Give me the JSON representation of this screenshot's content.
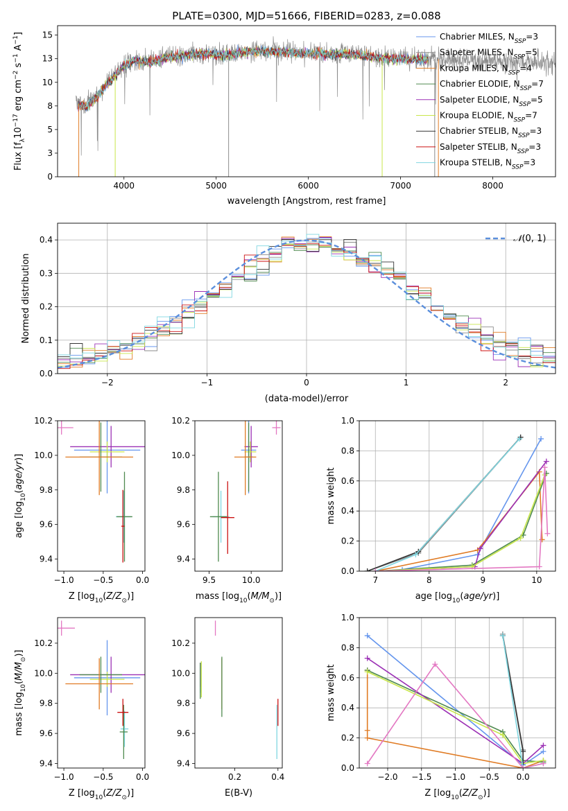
{
  "figure_title": "PLATE=0300, MJD=51666, FIBERID=0283, z=0.088",
  "models": [
    {
      "name": "Chabrier MILES",
      "nssp": "3",
      "color": "#6495ed"
    },
    {
      "name": "Salpeter MILES",
      "nssp": "5",
      "color": "#8b8b8b"
    },
    {
      "name": "Kroupa MILES",
      "nssp": "4",
      "color": "#e07b24"
    },
    {
      "name": "Chabrier ELODIE",
      "nssp": "7",
      "color": "#4f8a4f"
    },
    {
      "name": "Salpeter ELODIE",
      "nssp": "5",
      "color": "#9b30b5"
    },
    {
      "name": "Kroupa ELODIE",
      "nssp": "7",
      "color": "#c8e64a"
    },
    {
      "name": "Chabrier STELIB",
      "nssp": "3",
      "color": "#333333"
    },
    {
      "name": "Salpeter STELIB",
      "nssp": "3",
      "color": "#cc1111"
    },
    {
      "name": "Kroupa STELIB",
      "nssp": "3",
      "color": "#7fd6e0"
    }
  ],
  "chart_data": [
    {
      "id": "spectrum",
      "type": "line",
      "xlabel": "wavelength [Angstrom, rest frame]",
      "ylabel": "Flux [f_λ 10^-17 erg cm^-2 s^-1 A^-1]",
      "xlim": [
        3280,
        8680
      ],
      "ylim": [
        0,
        16
      ],
      "xticks": [
        4000,
        5000,
        6000,
        7000,
        8000
      ],
      "yticks": [
        0.0,
        2.5,
        5.0,
        7.5,
        10.0,
        12.5,
        15.0
      ],
      "grid": false,
      "legend": "right",
      "data_range": [
        3480,
        8680
      ],
      "data_spectrum": [
        [
          3480,
          7.8
        ],
        [
          3600,
          7.6
        ],
        [
          3700,
          8.6
        ],
        [
          3800,
          9.8
        ],
        [
          3900,
          10.8
        ],
        [
          4000,
          11.8
        ],
        [
          4100,
          12.4
        ],
        [
          4300,
          12.2
        ],
        [
          4500,
          12.8
        ],
        [
          4700,
          13.0
        ],
        [
          4900,
          13.1
        ],
        [
          5100,
          12.9
        ],
        [
          5300,
          13.3
        ],
        [
          5500,
          13.4
        ],
        [
          5700,
          13.3
        ],
        [
          5900,
          13.2
        ],
        [
          6100,
          13.1
        ],
        [
          6300,
          13.1
        ],
        [
          6500,
          13.0
        ],
        [
          6700,
          12.8
        ],
        [
          6900,
          12.6
        ],
        [
          7100,
          12.5
        ],
        [
          7300,
          12.5
        ],
        [
          7500,
          12.4
        ],
        [
          7800,
          12.3
        ],
        [
          8100,
          12.2
        ],
        [
          8400,
          12.1
        ],
        [
          8680,
          12.0
        ]
      ],
      "model_spectrum": [
        [
          3480,
          7.6
        ],
        [
          3600,
          7.4
        ],
        [
          3700,
          8.4
        ],
        [
          3800,
          9.6
        ],
        [
          3900,
          10.6
        ],
        [
          4000,
          11.7
        ],
        [
          4100,
          12.3
        ],
        [
          4300,
          12.1
        ],
        [
          4500,
          12.7
        ],
        [
          4700,
          12.9
        ],
        [
          4900,
          13.0
        ],
        [
          5100,
          12.8
        ],
        [
          5300,
          13.2
        ],
        [
          5500,
          13.3
        ],
        [
          5700,
          13.2
        ],
        [
          5900,
          13.1
        ],
        [
          6100,
          13.0
        ],
        [
          6300,
          13.0
        ],
        [
          6500,
          12.9
        ],
        [
          6700,
          12.7
        ],
        [
          6900,
          12.5
        ],
        [
          7100,
          12.4
        ],
        [
          7300,
          12.4
        ]
      ]
    },
    {
      "id": "residuals",
      "type": "line",
      "xlabel": "(data-model)/error",
      "ylabel": "Normed distribution",
      "xlim": [
        -2.5,
        2.5
      ],
      "ylim": [
        0,
        0.45
      ],
      "xticks": [
        -2,
        -1,
        0,
        1,
        2
      ],
      "yticks": [
        0.0,
        0.1,
        0.2,
        0.3,
        0.4
      ],
      "grid": true,
      "legend": "top-right",
      "reference": {
        "label": "N(0,1)",
        "mean": 0,
        "sigma": 1
      },
      "histogram_bins": [
        -2.5,
        2.5,
        40
      ]
    },
    {
      "id": "age_vs_Z",
      "type": "scatter",
      "xlabel": "Z [log10(Z/Z⊙)]",
      "ylabel": "age [log10(age/yr)]",
      "xlim": [
        -1.08,
        0.03
      ],
      "ylim": [
        9.33,
        10.2
      ],
      "xticks": [
        -1.0,
        -0.5,
        0.0
      ],
      "yticks": [
        9.4,
        9.6,
        9.8,
        10.0,
        10.2
      ],
      "grid": false,
      "points": [
        {
          "x": -1.03,
          "y": 10.16,
          "xerr": 0.15,
          "yerr": 0.04,
          "color": "#e377c2"
        },
        {
          "x": -0.45,
          "y": 10.03,
          "xerr": 0.42,
          "yerr": 0.25,
          "color": "#6495ed"
        },
        {
          "x": -0.4,
          "y": 10.05,
          "xerr": 0.52,
          "yerr": 0.12,
          "color": "#9b30b5"
        },
        {
          "x": -0.45,
          "y": 10.02,
          "xerr": 0.22,
          "yerr": 0.06,
          "color": "#c8e64a"
        },
        {
          "x": -0.53,
          "y": 9.99,
          "xerr": 0.27,
          "yerr": 0.2,
          "color": "#4f8a4f"
        },
        {
          "x": -0.55,
          "y": 9.99,
          "xerr": 0.43,
          "yerr": 0.22,
          "color": "#e07b24"
        },
        {
          "x": -0.24,
          "y": 9.645,
          "xerr": 0.1,
          "yerr": 0.15,
          "color": "#7fd6e0"
        },
        {
          "x": -0.23,
          "y": 9.645,
          "xerr": 0.1,
          "yerr": 0.26,
          "color": "#4f8a4f"
        },
        {
          "x": -0.25,
          "y": 9.59,
          "xerr": 0.02,
          "yerr": 0.21,
          "color": "#cc1111"
        }
      ]
    },
    {
      "id": "age_vs_mass",
      "type": "scatter",
      "xlabel": "mass [log10(M/M⊙)]",
      "ylabel": "",
      "xlim": [
        9.33,
        10.37
      ],
      "ylim": [
        9.33,
        10.2
      ],
      "xticks": [
        9.5,
        10.0
      ],
      "yticks": [
        9.4,
        9.6,
        9.8,
        10.0,
        10.2
      ],
      "grid": false,
      "points": [
        {
          "x": 10.3,
          "y": 10.16,
          "xerr": 0.05,
          "yerr": 0.04,
          "color": "#e377c2"
        },
        {
          "x": 9.97,
          "y": 10.03,
          "xerr": 0.09,
          "yerr": 0.25,
          "color": "#6495ed"
        },
        {
          "x": 10.0,
          "y": 10.05,
          "xerr": 0.08,
          "yerr": 0.12,
          "color": "#9b30b5"
        },
        {
          "x": 9.99,
          "y": 10.02,
          "xerr": 0.07,
          "yerr": 0.06,
          "color": "#c8e64a"
        },
        {
          "x": 9.97,
          "y": 9.99,
          "xerr": 0.05,
          "yerr": 0.2,
          "color": "#4f8a4f"
        },
        {
          "x": 9.93,
          "y": 9.99,
          "xerr": 0.13,
          "yerr": 0.22,
          "color": "#e07b24"
        },
        {
          "x": 9.64,
          "y": 9.645,
          "xerr": 0.1,
          "yerr": 0.15,
          "color": "#7fd6e0"
        },
        {
          "x": 9.61,
          "y": 9.645,
          "xerr": 0.1,
          "yerr": 0.26,
          "color": "#4f8a4f"
        },
        {
          "x": 9.72,
          "y": 9.64,
          "xerr": 0.08,
          "yerr": 0.21,
          "color": "#cc1111"
        }
      ]
    },
    {
      "id": "weight_vs_age",
      "type": "line",
      "xlabel": "age [log10(age/yr)]",
      "ylabel": "mass weight",
      "xlim": [
        6.7,
        10.35
      ],
      "ylim": [
        0,
        1
      ],
      "xticks": [
        7,
        8,
        9,
        10
      ],
      "yticks": [
        0.0,
        0.2,
        0.4,
        0.6,
        0.8,
        1.0
      ],
      "grid": true,
      "series": [
        {
          "color": "#6495ed",
          "points": [
            [
              7.5,
              0.01
            ],
            [
              8.9,
              0.11
            ],
            [
              10.08,
              0.88
            ]
          ]
        },
        {
          "color": "#8b8b8b",
          "points": [
            [
              6.85,
              0.0
            ],
            [
              7.8,
              0.12
            ],
            [
              9.7,
              0.89
            ]
          ]
        },
        {
          "color": "#e07b24",
          "points": [
            [
              7.0,
              0.0
            ],
            [
              8.9,
              0.14
            ],
            [
              10.05,
              0.66
            ],
            [
              10.1,
              0.21
            ]
          ]
        },
        {
          "color": "#4f8a4f",
          "points": [
            [
              7.0,
              0.0
            ],
            [
              8.8,
              0.04
            ],
            [
              9.75,
              0.24
            ],
            [
              10.18,
              0.65
            ]
          ]
        },
        {
          "color": "#9b30b5",
          "points": [
            [
              7.0,
              0.0
            ],
            [
              8.85,
              0.03
            ],
            [
              8.95,
              0.15
            ],
            [
              10.18,
              0.73
            ]
          ]
        },
        {
          "color": "#c8e64a",
          "points": [
            [
              7.0,
              0.0
            ],
            [
              8.8,
              0.03
            ],
            [
              9.7,
              0.22
            ],
            [
              10.15,
              0.64
            ]
          ]
        },
        {
          "color": "#333333",
          "points": [
            [
              6.85,
              0.0
            ],
            [
              7.8,
              0.13
            ],
            [
              9.7,
              0.89
            ]
          ]
        },
        {
          "color": "#7fd6e0",
          "points": [
            [
              7.0,
              0.0
            ],
            [
              7.75,
              0.11
            ],
            [
              9.68,
              0.88
            ]
          ]
        },
        {
          "color": "#e377c2",
          "points": [
            [
              7.0,
              0.0
            ],
            [
              10.05,
              0.03
            ],
            [
              10.15,
              0.69
            ],
            [
              10.2,
              0.25
            ]
          ]
        }
      ]
    },
    {
      "id": "mass_vs_Z",
      "type": "scatter",
      "xlabel": "Z [log10(Z/Z⊙)]",
      "ylabel": "mass [log10(M/M⊙)]",
      "xlim": [
        -1.08,
        0.03
      ],
      "ylim": [
        9.37,
        10.37
      ],
      "xticks": [
        -1.0,
        -0.5,
        0.0
      ],
      "yticks": [
        9.4,
        9.6,
        9.8,
        10.0,
        10.2
      ],
      "grid": false,
      "points": [
        {
          "x": -1.03,
          "y": 10.3,
          "xerr": 0.17,
          "yerr": 0.05,
          "color": "#e377c2"
        },
        {
          "x": -0.45,
          "y": 9.97,
          "xerr": 0.42,
          "yerr": 0.25,
          "color": "#6495ed"
        },
        {
          "x": -0.4,
          "y": 9.99,
          "xerr": 0.52,
          "yerr": 0.12,
          "color": "#9b30b5"
        },
        {
          "x": -0.45,
          "y": 9.96,
          "xerr": 0.22,
          "yerr": 0.05,
          "color": "#c8e64a"
        },
        {
          "x": -0.53,
          "y": 9.99,
          "xerr": 0.27,
          "yerr": 0.12,
          "color": "#4f8a4f"
        },
        {
          "x": -0.55,
          "y": 9.93,
          "xerr": 0.43,
          "yerr": 0.17,
          "color": "#e07b24"
        },
        {
          "x": -0.23,
          "y": 9.63,
          "xerr": 0.05,
          "yerr": 0.12,
          "color": "#7fd6e0"
        },
        {
          "x": -0.24,
          "y": 9.61,
          "xerr": 0.05,
          "yerr": 0.18,
          "color": "#4f8a4f"
        },
        {
          "x": -0.25,
          "y": 9.74,
          "xerr": 0.07,
          "yerr": 0.09,
          "color": "#cc1111"
        }
      ]
    },
    {
      "id": "mass_vs_ebv",
      "type": "scatter",
      "xlabel": "E(B-V)",
      "ylabel": "",
      "xlim": [
        0.015,
        0.42
      ],
      "ylim": [
        9.37,
        10.37
      ],
      "xticks": [
        0.2,
        0.4
      ],
      "yticks": [
        9.4,
        9.6,
        9.8,
        10.0,
        10.2
      ],
      "grid": false,
      "points": [
        {
          "x": 0.11,
          "y": 10.3,
          "yerr": 0.05,
          "color": "#e377c2"
        },
        {
          "x": 0.04,
          "y": 9.97,
          "yerr": 0.1,
          "color": "#6495ed"
        },
        {
          "x": 0.04,
          "y": 9.99,
          "yerr": 0.08,
          "color": "#9b30b5"
        },
        {
          "x": 0.045,
          "y": 9.96,
          "yerr": 0.12,
          "color": "#c8e64a"
        },
        {
          "x": 0.04,
          "y": 9.95,
          "yerr": 0.12,
          "color": "#4f8a4f"
        },
        {
          "x": 0.14,
          "y": 9.93,
          "yerr": 0.17,
          "color": "#e07b24"
        },
        {
          "x": 0.14,
          "y": 9.91,
          "yerr": 0.2,
          "color": "#4f8a4f"
        },
        {
          "x": 0.395,
          "y": 9.61,
          "yerr": 0.18,
          "color": "#7fd6e0"
        },
        {
          "x": 0.4,
          "y": 9.74,
          "yerr": 0.09,
          "color": "#cc1111"
        }
      ]
    },
    {
      "id": "weight_vs_Z",
      "type": "line",
      "xlabel": "Z [log10(Z/Z⊙)]",
      "ylabel": "mass weight",
      "xlim": [
        -2.42,
        0.48
      ],
      "ylim": [
        0,
        1
      ],
      "xticks": [
        -2.0,
        -1.5,
        -1.0,
        -0.5,
        0.0
      ],
      "yticks": [
        0.0,
        0.2,
        0.4,
        0.6,
        0.8,
        1.0
      ],
      "grid": true,
      "series": [
        {
          "color": "#6495ed",
          "points": [
            [
              -2.3,
              0.88
            ],
            [
              0.0,
              0.02
            ],
            [
              0.3,
              0.11
            ]
          ]
        },
        {
          "color": "#8b8b8b",
          "points": [
            [
              -0.3,
              0.89
            ],
            [
              0.0,
              0.12
            ],
            [
              0.0,
              0.0
            ]
          ]
        },
        {
          "color": "#e07b24",
          "points": [
            [
              -2.3,
              0.65
            ],
            [
              -2.3,
              0.25
            ],
            [
              -2.3,
              0.2
            ],
            [
              0.0,
              0.0
            ],
            [
              0.3,
              0.05
            ]
          ]
        },
        {
          "color": "#4f8a4f",
          "points": [
            [
              -2.3,
              0.65
            ],
            [
              -0.3,
              0.24
            ],
            [
              0.0,
              0.05
            ],
            [
              0.3,
              0.04
            ]
          ]
        },
        {
          "color": "#9b30b5",
          "points": [
            [
              -2.3,
              0.73
            ],
            [
              0.0,
              0.03
            ],
            [
              0.3,
              0.15
            ]
          ]
        },
        {
          "color": "#c8e64a",
          "points": [
            [
              -2.3,
              0.64
            ],
            [
              -0.3,
              0.22
            ],
            [
              0.0,
              0.03
            ],
            [
              0.3,
              0.05
            ]
          ]
        },
        {
          "color": "#333333",
          "points": [
            [
              -0.3,
              0.88
            ],
            [
              0.0,
              0.11
            ],
            [
              0.0,
              0.0
            ]
          ]
        },
        {
          "color": "#7fd6e0",
          "points": [
            [
              -0.3,
              0.88
            ],
            [
              0.0,
              0.0
            ],
            [
              0.3,
              0.03
            ]
          ]
        },
        {
          "color": "#e377c2",
          "points": [
            [
              -2.3,
              0.03
            ],
            [
              -1.3,
              0.69
            ],
            [
              0.0,
              0.0
            ],
            [
              0.3,
              0.03
            ]
          ]
        }
      ]
    }
  ]
}
